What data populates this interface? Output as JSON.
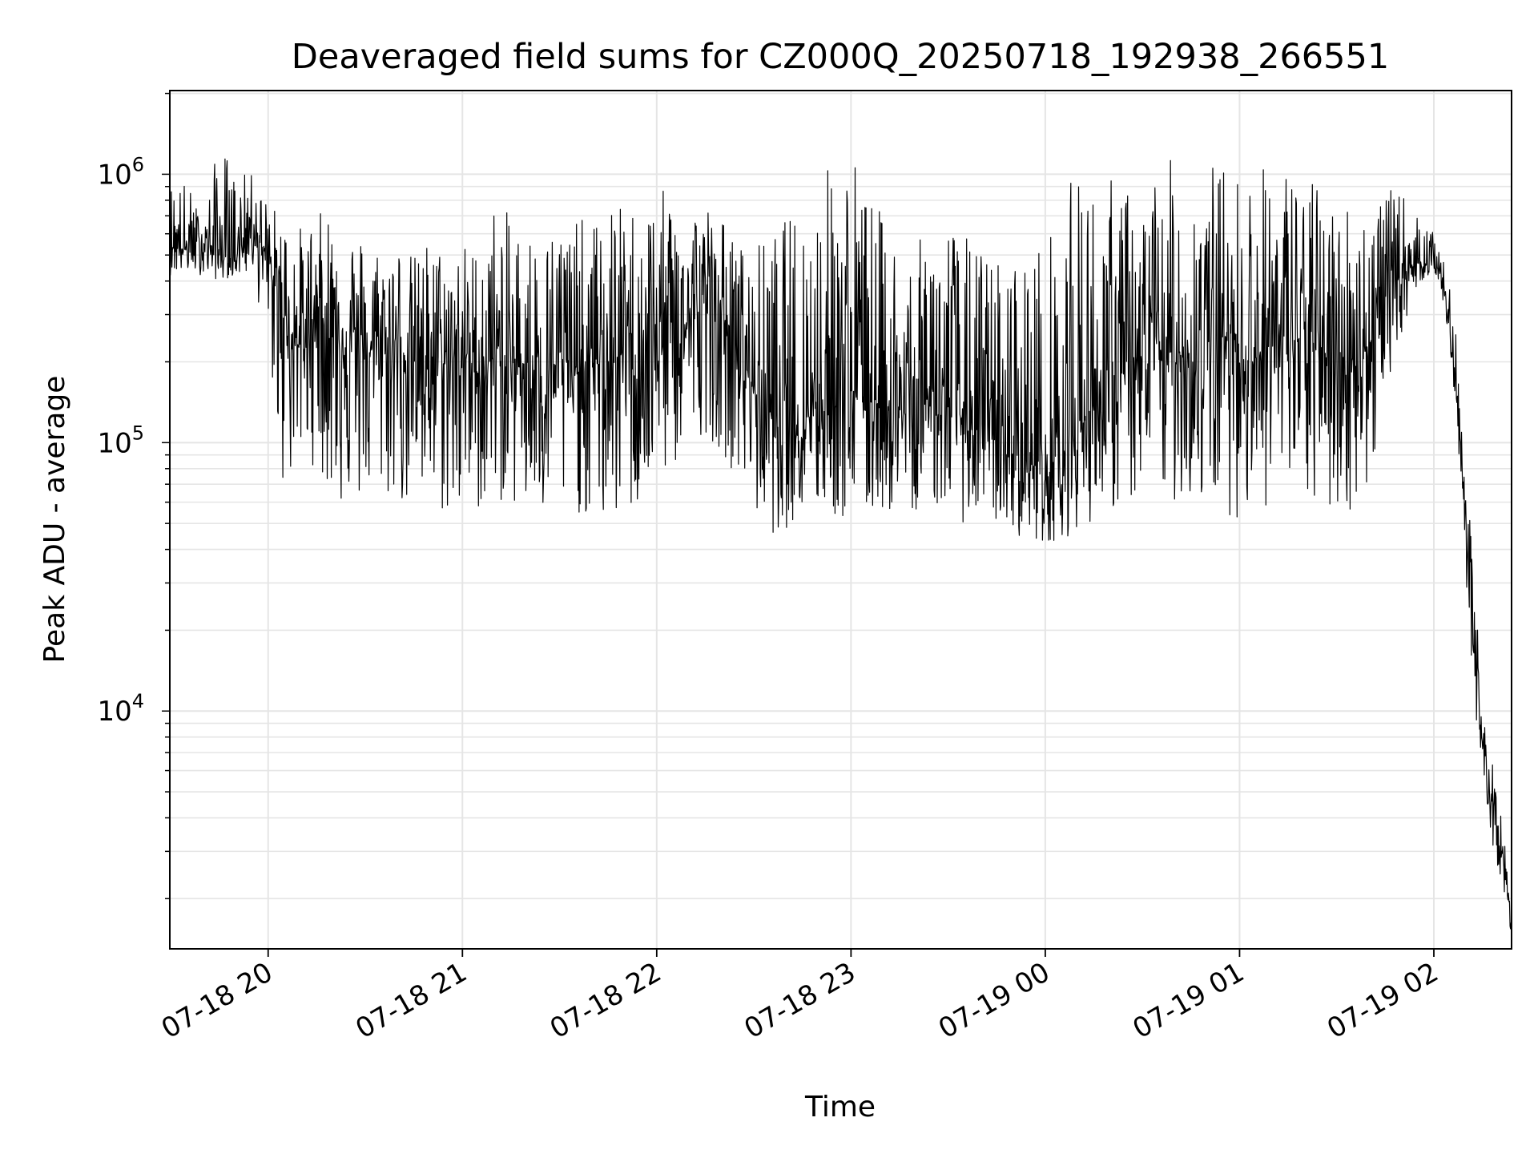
{
  "chart_data": {
    "type": "line",
    "title": "Deaveraged field sums for CZ000Q_20250718_192938_266551",
    "xlabel": "Time",
    "ylabel": "Peak ADU - average",
    "xscale": "time",
    "yscale": "log",
    "xlim": [
      "2025-07-18 19:29:38",
      "2025-07-19 02:24:00"
    ],
    "ylim": [
      1300,
      2050000
    ],
    "grid": true,
    "line_color": "#000000",
    "grid_color": "#e5e5e5",
    "x_ticks": [
      {
        "value": "2025-07-18 20:00",
        "label": "07-18 20"
      },
      {
        "value": "2025-07-18 21:00",
        "label": "07-18 21"
      },
      {
        "value": "2025-07-18 22:00",
        "label": "07-18 22"
      },
      {
        "value": "2025-07-18 23:00",
        "label": "07-18 23"
      },
      {
        "value": "2025-07-19 00:00",
        "label": "07-19 00"
      },
      {
        "value": "2025-07-19 01:00",
        "label": "07-19 01"
      },
      {
        "value": "2025-07-19 02:00",
        "label": "07-19 02"
      }
    ],
    "y_ticks": [
      {
        "value": 10000,
        "base": "10",
        "exp": "4"
      },
      {
        "value": 100000,
        "base": "10",
        "exp": "5"
      },
      {
        "value": 1000000,
        "base": "10",
        "exp": "6"
      }
    ],
    "series": [
      {
        "x": [
          "2025-07-18 19:29:38",
          "2025-07-18 19:35",
          "2025-07-18 19:40",
          "2025-07-18 19:45",
          "2025-07-18 19:50",
          "2025-07-18 19:55",
          "2025-07-18 20:00",
          "2025-07-18 20:05",
          "2025-07-18 20:10",
          "2025-07-18 20:15",
          "2025-07-18 20:20",
          "2025-07-18 20:25",
          "2025-07-18 20:30",
          "2025-07-18 20:35",
          "2025-07-18 20:40",
          "2025-07-18 20:45",
          "2025-07-18 20:50",
          "2025-07-18 20:55",
          "2025-07-18 21:00",
          "2025-07-18 21:05",
          "2025-07-18 21:10",
          "2025-07-18 21:15",
          "2025-07-18 21:20",
          "2025-07-18 21:25",
          "2025-07-18 21:30",
          "2025-07-18 21:35",
          "2025-07-18 21:40",
          "2025-07-18 21:45",
          "2025-07-18 21:50",
          "2025-07-18 21:55",
          "2025-07-18 22:00",
          "2025-07-18 22:05",
          "2025-07-18 22:10",
          "2025-07-18 22:15",
          "2025-07-18 22:20",
          "2025-07-18 22:25",
          "2025-07-18 22:30",
          "2025-07-18 22:35",
          "2025-07-18 22:40",
          "2025-07-18 22:45",
          "2025-07-18 22:50",
          "2025-07-18 22:55",
          "2025-07-18 23:00",
          "2025-07-18 23:05",
          "2025-07-18 23:10",
          "2025-07-18 23:15",
          "2025-07-18 23:20",
          "2025-07-18 23:25",
          "2025-07-18 23:30",
          "2025-07-18 23:35",
          "2025-07-18 23:40",
          "2025-07-18 23:45",
          "2025-07-18 23:50",
          "2025-07-18 23:55",
          "2025-07-19 00:00",
          "2025-07-19 00:05",
          "2025-07-19 00:10",
          "2025-07-19 00:15",
          "2025-07-19 00:20",
          "2025-07-19 00:25",
          "2025-07-19 00:30",
          "2025-07-19 00:35",
          "2025-07-19 00:40",
          "2025-07-19 00:45",
          "2025-07-19 00:50",
          "2025-07-19 00:55",
          "2025-07-19 01:00",
          "2025-07-19 01:05",
          "2025-07-19 01:10",
          "2025-07-19 01:15",
          "2025-07-19 01:20",
          "2025-07-19 01:25",
          "2025-07-19 01:30",
          "2025-07-19 01:35",
          "2025-07-19 01:40",
          "2025-07-19 01:45",
          "2025-07-19 01:50",
          "2025-07-19 01:55",
          "2025-07-19 02:00",
          "2025-07-19 02:03",
          "2025-07-19 02:06",
          "2025-07-19 02:09",
          "2025-07-19 02:12",
          "2025-07-19 02:15",
          "2025-07-19 02:18",
          "2025-07-19 02:21",
          "2025-07-19 02:24"
        ],
        "y": [
          550000,
          520000,
          560000,
          500000,
          480000,
          700000,
          450000,
          300000,
          220000,
          320000,
          250000,
          260000,
          210000,
          240000,
          230000,
          200000,
          210000,
          200000,
          220000,
          180000,
          210000,
          190000,
          200000,
          170000,
          210000,
          180000,
          200000,
          190000,
          220000,
          200000,
          250000,
          240000,
          280000,
          330000,
          300000,
          230000,
          160000,
          130000,
          110000,
          120000,
          150000,
          140000,
          160000,
          150000,
          140000,
          130000,
          120000,
          160000,
          140000,
          120000,
          110000,
          100000,
          90000,
          85000,
          75000,
          90000,
          110000,
          140000,
          160000,
          180000,
          200000,
          210000,
          220000,
          200000,
          230000,
          250000,
          220000,
          210000,
          230000,
          250000,
          230000,
          220000,
          200000,
          210000,
          230000,
          350000,
          420000,
          470000,
          480000,
          400000,
          200000,
          80000,
          18000,
          7500,
          4500,
          3000,
          1550
        ],
        "lo": [
          420000,
          430000,
          420000,
          400000,
          420000,
          420000,
          230000,
          60000,
          90000,
          80000,
          60000,
          55000,
          60000,
          62000,
          58000,
          55000,
          55000,
          52000,
          50000,
          55000,
          60000,
          58000,
          52000,
          50000,
          52000,
          55000,
          50000,
          48000,
          52000,
          55000,
          70000,
          78000,
          95000,
          110000,
          90000,
          75000,
          55000,
          45000,
          48000,
          52000,
          55000,
          52000,
          48000,
          52000,
          55000,
          54000,
          56000,
          58000,
          55000,
          50000,
          52000,
          50000,
          46000,
          43000,
          42000,
          44000,
          46000,
          52000,
          55000,
          58000,
          60000,
          62000,
          60000,
          60000,
          58000,
          55000,
          52000,
          55000,
          58000,
          60000,
          58000,
          55000,
          52000,
          56000,
          60000,
          160000,
          250000,
          390000,
          430000,
          330000,
          150000,
          55000,
          10000,
          5500,
          3200,
          2300,
          1450
        ],
        "hi": [
          950000,
          950000,
          650000,
          1400000,
          1000000,
          1000000,
          800000,
          700000,
          650000,
          700000,
          800000,
          650000,
          600000,
          550000,
          580000,
          500000,
          600000,
          520000,
          560000,
          550000,
          800000,
          700000,
          650000,
          600000,
          700000,
          700000,
          650000,
          800000,
          750000,
          800000,
          850000,
          900000,
          800000,
          800000,
          700000,
          550000,
          550000,
          600000,
          700000,
          800000,
          900000,
          1300000,
          1350000,
          900000,
          700000,
          600000,
          550000,
          650000,
          700000,
          600000,
          550000,
          500000,
          500000,
          550000,
          600000,
          700000,
          1200000,
          900000,
          1000000,
          900000,
          800000,
          1100000,
          1150000,
          1000000,
          1150000,
          1100000,
          1000000,
          1150000,
          1050000,
          1100000,
          1000000,
          900000,
          850000,
          800000,
          800000,
          880000,
          860000,
          700000,
          600000,
          520000,
          320000,
          130000,
          35000,
          13000,
          6500,
          4200,
          1750
        ]
      }
    ]
  }
}
